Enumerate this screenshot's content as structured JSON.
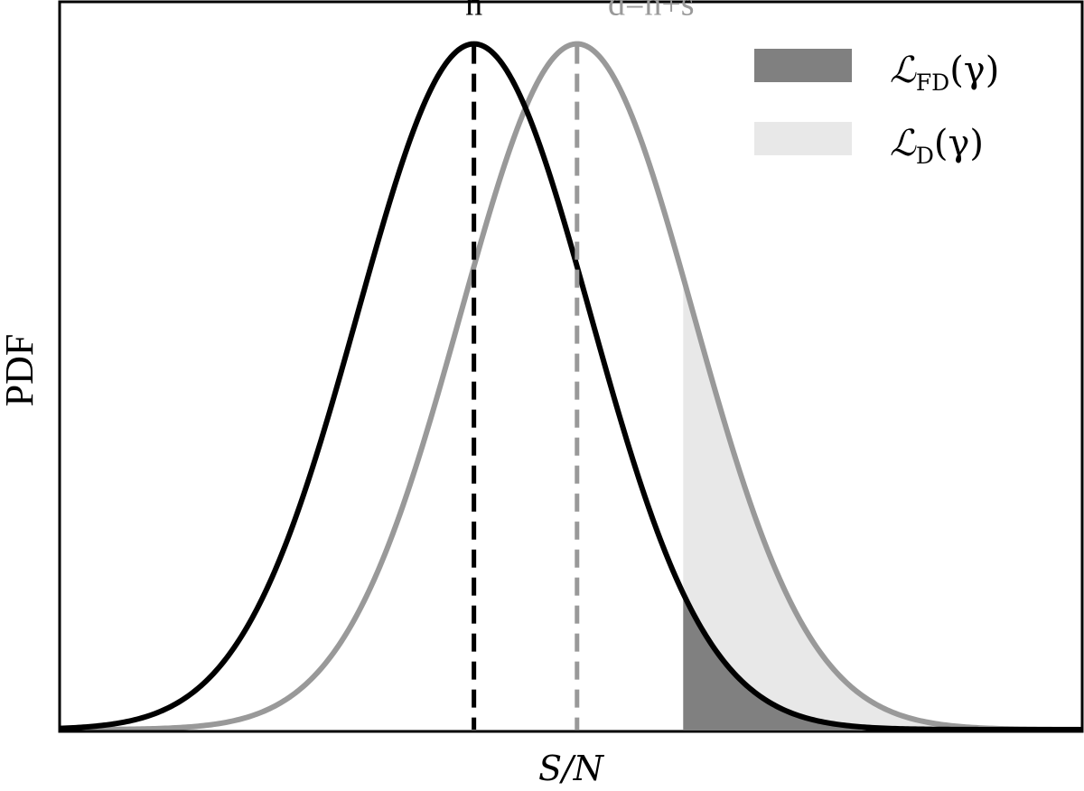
{
  "chart_data": {
    "type": "area",
    "title": "",
    "xlabel": "S/N",
    "ylabel": "PDF",
    "xlim": [
      0,
      1
    ],
    "ylim": [
      0,
      1.06
    ],
    "grid": false,
    "legend_position": "top-right",
    "series": [
      {
        "key": "noise",
        "label": "n",
        "color": "#000000",
        "mean": 0.405,
        "sigma": 0.114,
        "peak": 1.0
      },
      {
        "key": "signal",
        "label": "d=n+s",
        "color": "#999999",
        "mean": 0.506,
        "sigma": 0.114,
        "peak": 1.0
      }
    ],
    "threshold": 0.61,
    "fills": [
      {
        "key": "false_detection",
        "of": "noise",
        "color": "#808080"
      },
      {
        "key": "detection",
        "of": "signal",
        "color": "#e8e8e8"
      }
    ],
    "legend": [
      {
        "key": "false_detection",
        "label_main": "ℒ",
        "label_sub": "FD",
        "label_arg": "(γ)",
        "color": "#808080"
      },
      {
        "key": "detection",
        "label_main": "ℒ",
        "label_sub": "D",
        "label_arg": "(γ)",
        "color": "#e8e8e8"
      }
    ]
  }
}
